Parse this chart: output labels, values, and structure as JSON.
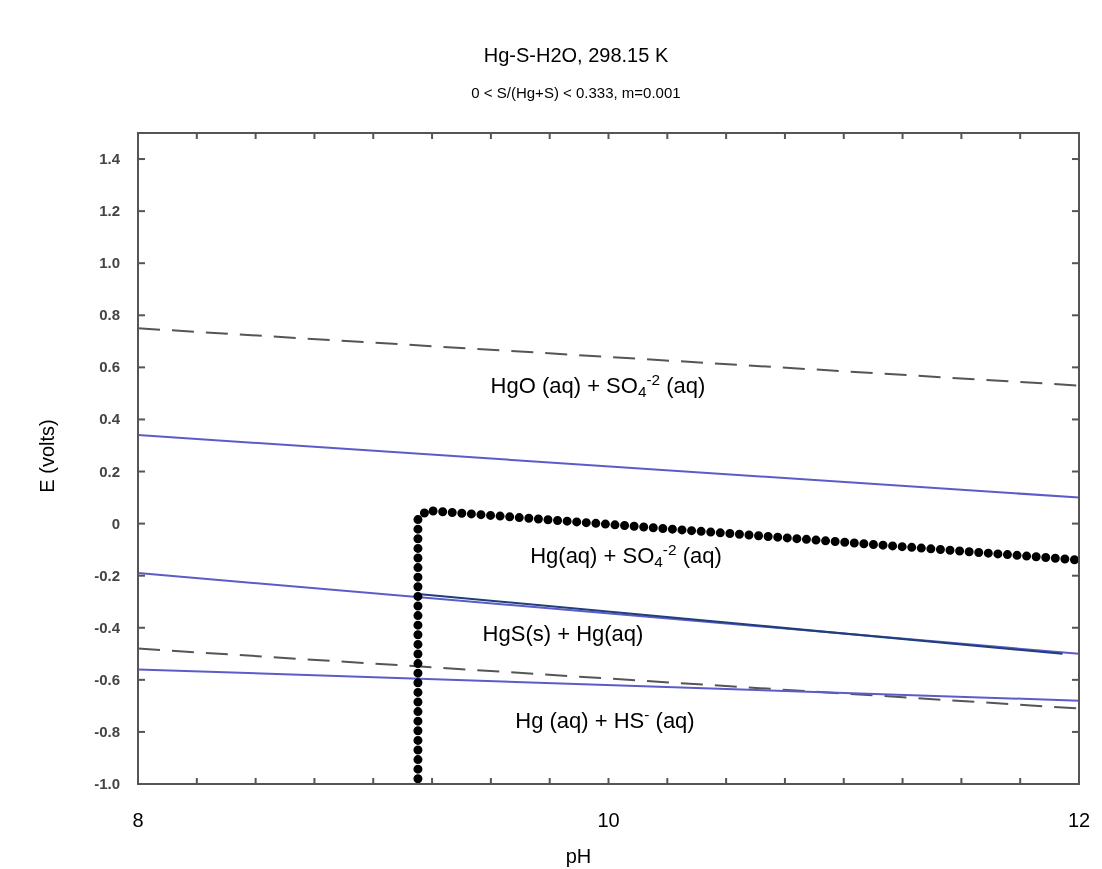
{
  "chart_data": {
    "type": "line",
    "title": "Hg-S-H2O, 298.15 K",
    "subtitle": "0 < S/(Hg+S) < 0.333, m=0.001",
    "xlabel": "pH",
    "ylabel": "E (volts)",
    "xlim": [
      8,
      12
    ],
    "ylim": [
      -1.0,
      1.5
    ],
    "xticks": [
      8,
      {
        "value": 8.25,
        "label": null
      },
      {
        "value": 8.5,
        "label": null
      },
      {
        "value": 8.75,
        "label": null
      },
      {
        "value": 9,
        "label": null
      },
      {
        "value": 9.25,
        "label": null
      },
      {
        "value": 9.5,
        "label": null
      },
      {
        "value": 9.75,
        "label": null
      },
      10,
      {
        "value": 10.25,
        "label": null
      },
      {
        "value": 10.5,
        "label": null
      },
      {
        "value": 10.75,
        "label": null
      },
      {
        "value": 11,
        "label": null
      },
      {
        "value": 11.25,
        "label": null
      },
      {
        "value": 11.5,
        "label": null
      },
      {
        "value": 11.75,
        "label": null
      },
      12
    ],
    "yticks": [
      {
        "value": -1.0,
        "label": "-1.0"
      },
      -0.8,
      -0.6,
      -0.4,
      -0.2,
      0,
      0.2,
      0.4,
      0.6,
      0.8,
      {
        "value": 1.0,
        "label": "1.0"
      },
      1.2,
      1.4
    ],
    "grid": false,
    "marker": "none",
    "series": [
      {
        "color": "#555555",
        "line_style": "dashed",
        "x": [
          8,
          12
        ],
        "values": [
          0.75,
          0.53
        ]
      },
      {
        "color": "#5c5cc8",
        "line_style": "solid",
        "x": [
          8,
          12
        ],
        "values": [
          0.34,
          0.1
        ]
      },
      {
        "color": "#5c5cc8",
        "line_style": "solid",
        "x": [
          8,
          12
        ],
        "values": [
          -0.19,
          -0.5
        ]
      },
      {
        "color": "#1f3f7a",
        "line_style": "solid",
        "x": [
          9.19,
          11.93
        ],
        "values": [
          -0.27,
          -0.5
        ]
      },
      {
        "color": "#555555",
        "line_style": "dashed",
        "x": [
          8,
          12
        ],
        "values": [
          -0.48,
          -0.71
        ]
      },
      {
        "color": "#5c5cc8",
        "line_style": "solid",
        "x": [
          8,
          12
        ],
        "values": [
          -0.56,
          -0.68
        ]
      },
      {
        "color": "#000000",
        "line_style": "dotted",
        "x": [
          9.19,
          9.19,
          9.23,
          12
        ],
        "values": [
          -0.98,
          0.02,
          0.05,
          -0.14
        ]
      }
    ],
    "annotations": [
      "HgO (aq) + SO$_{4}$$^{-2}$ (aq)",
      "Hg(aq) + SO$_{4}$$^{-2}$ (aq)",
      "HgS(s) + Hg(aq)",
      "Hg (aq) + HS$^{-}$ (aq)"
    ]
  }
}
